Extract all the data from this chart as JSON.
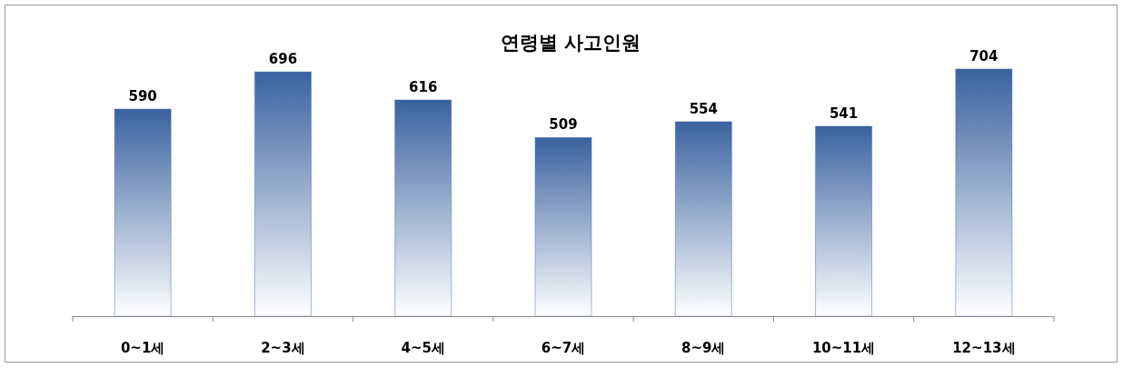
{
  "chart_data": {
    "type": "bar",
    "title": "연령별 사고인원",
    "categories": [
      "0~1세",
      "2~3세",
      "4~5세",
      "6~7세",
      "8~9세",
      "10~11세",
      "12~13세"
    ],
    "values": [
      590,
      696,
      616,
      509,
      554,
      541,
      704
    ],
    "color": "#3a62a0",
    "data_labels": true
  }
}
